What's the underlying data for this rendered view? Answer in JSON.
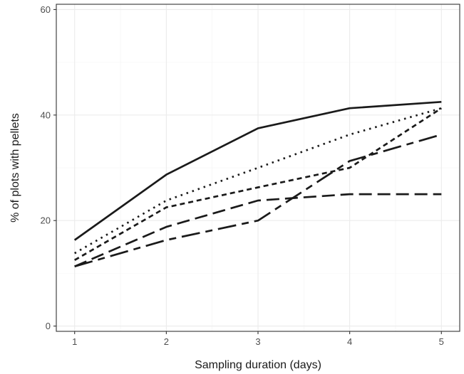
{
  "chart_data": {
    "type": "line",
    "title": "",
    "xlabel": "Sampling duration (days)",
    "ylabel": "% of plots with pellets",
    "x": [
      1,
      2,
      3,
      4,
      5
    ],
    "xlim": [
      0.8,
      5.2
    ],
    "ylim": [
      -1,
      61
    ],
    "xticks": [
      1,
      2,
      3,
      4,
      5
    ],
    "yticks": [
      0,
      20,
      40,
      60
    ],
    "grid": true,
    "legend": "none",
    "line_color": "#1a1a1a",
    "series": [
      {
        "linestyle": "solid",
        "values": [
          16.3,
          28.7,
          37.5,
          41.3,
          42.5
        ]
      },
      {
        "linestyle": "dotted",
        "values": [
          13.8,
          23.8,
          30.0,
          36.3,
          41.3
        ]
      },
      {
        "linestyle": "short-dash",
        "values": [
          12.5,
          22.5,
          26.3,
          30.0,
          41.3
        ]
      },
      {
        "linestyle": "long-dash",
        "values": [
          11.3,
          18.8,
          23.8,
          25.0,
          25.0
        ]
      },
      {
        "linestyle": "two-dash",
        "values": [
          11.3,
          16.3,
          20.0,
          31.3,
          36.3
        ]
      }
    ]
  }
}
